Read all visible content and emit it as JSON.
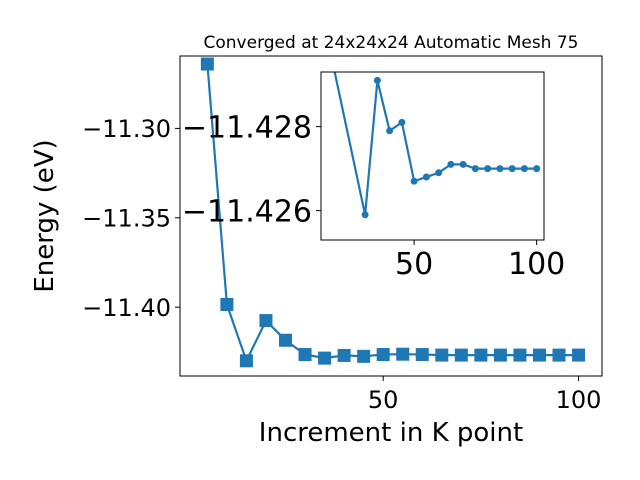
{
  "chart_data": [
    {
      "type": "line",
      "title": "Converged at 24x24x24 Automatic Mesh 75",
      "xlabel": "Increment in K point",
      "ylabel": "Energy (eV)",
      "xlim": [
        -2,
        106
      ],
      "ylim": [
        -11.4385,
        -11.2595
      ],
      "xticks": [
        50,
        100
      ],
      "xtick_labels": [
        "50",
        "100"
      ],
      "yticks": [
        -11.3,
        -11.35,
        -11.4
      ],
      "ytick_labels": [
        "−11.30",
        "−11.35",
        "−11.40"
      ],
      "grid": false,
      "marker": "square",
      "color": "#1f77b4",
      "series": [
        {
          "x": [
            5,
            10,
            15,
            20,
            25,
            30,
            35,
            40,
            45,
            50,
            55,
            60,
            65,
            70,
            75,
            80,
            85,
            90,
            95,
            100
          ],
          "y": [
            -11.264,
            -11.3985,
            -11.43,
            -11.4075,
            -11.4185,
            -11.4265,
            -11.4285,
            -11.427,
            -11.4275,
            -11.4265,
            -11.4263,
            -11.4265,
            -11.4268,
            -11.4268,
            -11.4268,
            -11.4268,
            -11.4268,
            -11.4268,
            -11.4268,
            -11.4268
          ]
        }
      ]
    },
    {
      "type": "line",
      "title": "",
      "xlabel": "",
      "ylabel": "",
      "xlim": [
        12,
        103
      ],
      "ylim": [
        -11.4293,
        -11.4253
      ],
      "xticks": [
        50,
        100
      ],
      "xtick_labels": [
        "50",
        "100"
      ],
      "yticks": [
        -11.428,
        -11.426
      ],
      "ytick_labels": [
        "−11.428",
        "−11.426"
      ],
      "y_inverted": true,
      "grid": false,
      "marker": "circle",
      "color": "#1f77b4",
      "series": [
        {
          "x": [
            15,
            30,
            35,
            40,
            45,
            50,
            55,
            60,
            65,
            70,
            75,
            80,
            85,
            90,
            95,
            100
          ],
          "y": [
            -11.43,
            -11.4259,
            -11.4291,
            -11.4279,
            -11.4281,
            -11.4267,
            -11.4268,
            -11.4269,
            -11.4271,
            -11.4271,
            -11.427,
            -11.427,
            -11.427,
            -11.427,
            -11.427,
            -11.427
          ]
        }
      ]
    }
  ]
}
